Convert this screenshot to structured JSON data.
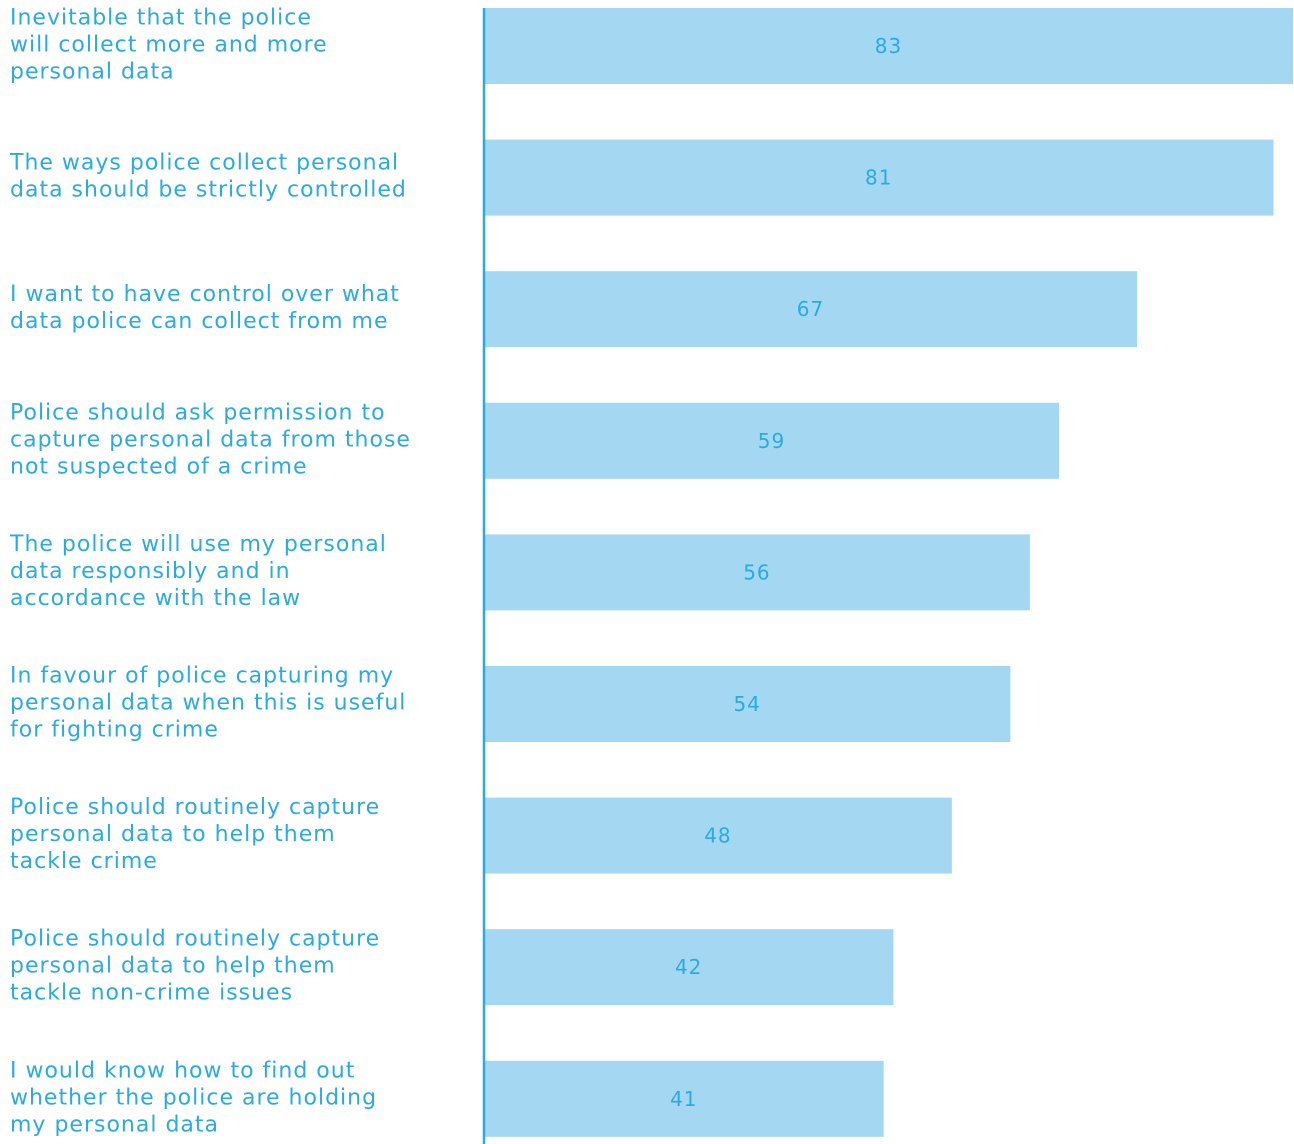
{
  "chart_data": {
    "type": "bar",
    "orientation": "horizontal",
    "categories": [
      [
        "Inevitable that the police",
        "will collect more and more",
        "personal data"
      ],
      [
        "The ways police collect personal",
        "data should be strictly controlled"
      ],
      [
        "I want to have control over what",
        "data police can collect from me"
      ],
      [
        "Police should ask permission to",
        "capture personal data from those",
        "not suspected of a crime"
      ],
      [
        "The police will use my personal",
        "data responsibly and in",
        "accordance with the law"
      ],
      [
        "In favour of police capturing my",
        "personal data when this is useful",
        "for fighting crime"
      ],
      [
        "Police should routinely capture",
        "personal data to help them",
        "tackle crime"
      ],
      [
        "Police should routinely capture",
        "personal data to help them",
        "tackle non-crime issues"
      ],
      [
        "I would know how to find out",
        "whether the police are holding",
        "my personal data"
      ]
    ],
    "values": [
      83,
      81,
      67,
      59,
      56,
      54,
      48,
      42,
      41
    ],
    "value_labels": [
      "83",
      "81",
      "67",
      "59",
      "56",
      "54",
      "48",
      "42",
      "41"
    ],
    "title": "",
    "xlabel": "",
    "ylabel": "",
    "xlim": [
      0,
      83
    ],
    "grid": false,
    "legend": "none",
    "colors": {
      "bar": "#a3d7f2",
      "axis": "#29abe2",
      "label_text": "#29abe2"
    }
  }
}
